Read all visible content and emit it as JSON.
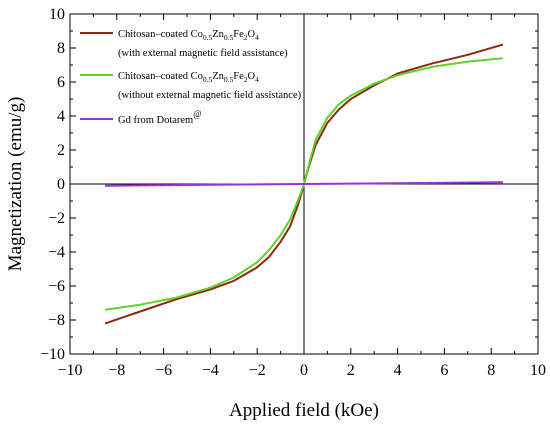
{
  "chart_data": {
    "type": "line",
    "title": "",
    "xlabel": "Applied field (kOe)",
    "ylabel": "Magnetization (emu/g)",
    "xlim": [
      -10,
      10
    ],
    "ylim": [
      -10,
      10
    ],
    "xticks": [
      -10,
      -8,
      -6,
      -4,
      -2,
      0,
      2,
      4,
      6,
      8,
      10
    ],
    "yticks": [
      -10,
      -8,
      -6,
      -4,
      -2,
      0,
      2,
      4,
      6,
      8,
      10
    ],
    "grid": false,
    "legend_position": "top-left",
    "series": [
      {
        "name_parts": [
          "Chitosan–coated Co",
          "0.5",
          "Zn",
          "0.5",
          "Fe",
          "2",
          "O",
          "4"
        ],
        "name_note": "(with external magnetic field assistance)",
        "color": "#8b2a10",
        "x": [
          -8.5,
          -7,
          -5.5,
          -4,
          -3,
          -2,
          -1.5,
          -1,
          -0.6,
          -0.3,
          -0.1,
          0,
          0.2,
          0.5,
          1,
          1.5,
          2,
          3,
          4,
          5.5,
          7,
          8.5
        ],
        "y": [
          -8.2,
          -7.5,
          -6.8,
          -6.2,
          -5.7,
          -4.9,
          -4.3,
          -3.4,
          -2.5,
          -1.4,
          -0.5,
          0,
          1.0,
          2.3,
          3.6,
          4.4,
          5.0,
          5.8,
          6.5,
          7.1,
          7.6,
          8.2
        ]
      },
      {
        "name_parts": [
          "Chitosan–coated Co",
          "0.5",
          "Zn",
          "0.5",
          "Fe",
          "2",
          "O",
          "4"
        ],
        "name_note": "(without external magnetic field assistance)",
        "color": "#5ed12a",
        "x": [
          -8.5,
          -7,
          -5.5,
          -4,
          -3,
          -2,
          -1.5,
          -1,
          -0.6,
          -0.3,
          -0.1,
          0,
          0.2,
          0.5,
          1,
          1.5,
          2,
          3,
          4,
          5.5,
          7,
          8.5
        ],
        "y": [
          -7.4,
          -7.1,
          -6.7,
          -6.1,
          -5.5,
          -4.6,
          -3.9,
          -3.0,
          -2.1,
          -1.1,
          -0.4,
          0,
          1.1,
          2.6,
          3.9,
          4.7,
          5.2,
          5.9,
          6.4,
          6.9,
          7.2,
          7.4
        ]
      },
      {
        "name_parts": [
          "Gd from Dotarem"
        ],
        "name_sup": "@",
        "color": "#9b30d9",
        "x": [
          -8.5,
          0,
          8.5
        ],
        "y": [
          -0.1,
          0,
          0.1
        ]
      }
    ]
  }
}
